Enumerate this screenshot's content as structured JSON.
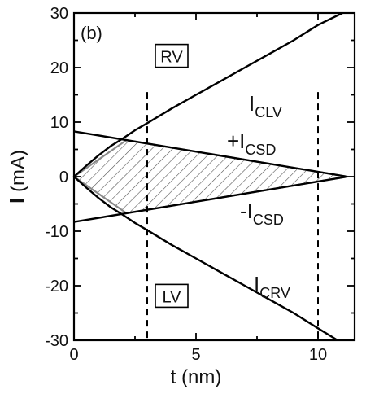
{
  "chart_data": {
    "type": "line",
    "panel_label": "(b)",
    "xlabel": "t (nm)",
    "ylabel_main": "I",
    "ylabel_unit": "(mA)",
    "xlim": [
      0,
      11.5
    ],
    "ylim": [
      -30,
      30
    ],
    "xticks": [
      0,
      5,
      10
    ],
    "yticks": [
      -30,
      -20,
      -10,
      0,
      10,
      20,
      30
    ],
    "grid": false,
    "series": [
      {
        "name": "I_CLV",
        "label_main": "I",
        "label_sub": "CLV",
        "color": "#000000",
        "x": [
          0,
          0.5,
          1,
          1.5,
          2,
          2.5,
          3,
          4,
          5,
          6,
          7,
          8,
          9,
          10,
          11
        ],
        "y": [
          0,
          2.0,
          3.9,
          5.6,
          7.0,
          8.5,
          9.8,
          12.5,
          15.0,
          17.5,
          20.0,
          22.5,
          25.0,
          27.8,
          30.0
        ]
      },
      {
        "name": "I_CRV",
        "label_main": "I",
        "label_sub": "CRV",
        "color": "#000000",
        "x": [
          0,
          0.5,
          1,
          1.5,
          2,
          2.5,
          3,
          4,
          5,
          6,
          7,
          8,
          9,
          10,
          10.8
        ],
        "y": [
          0,
          -2.0,
          -3.9,
          -5.6,
          -7.0,
          -8.5,
          -9.8,
          -12.5,
          -15.0,
          -17.5,
          -20.0,
          -22.5,
          -25.0,
          -27.8,
          -30.0
        ]
      },
      {
        "name": "+I_CSD",
        "label_main": "+I",
        "label_sub": "CSD",
        "color": "#000000",
        "x": [
          0,
          11.2
        ],
        "y": [
          8.3,
          0
        ]
      },
      {
        "name": "-I_CSD",
        "label_main": "-I",
        "label_sub": "CSD",
        "color": "#000000",
        "x": [
          0,
          11.2
        ],
        "y": [
          -8.3,
          0
        ]
      }
    ],
    "stable_region": {
      "hatched": true,
      "vertices": [
        [
          0,
          0
        ],
        [
          2.15,
          6.7
        ],
        [
          11.2,
          0
        ],
        [
          2.15,
          -6.7
        ]
      ]
    },
    "vlines": [
      3,
      10
    ],
    "region_labels": [
      {
        "text": "RV",
        "x": 4.0,
        "y": 22
      },
      {
        "text": "LV",
        "x": 4.0,
        "y": -22
      }
    ]
  }
}
